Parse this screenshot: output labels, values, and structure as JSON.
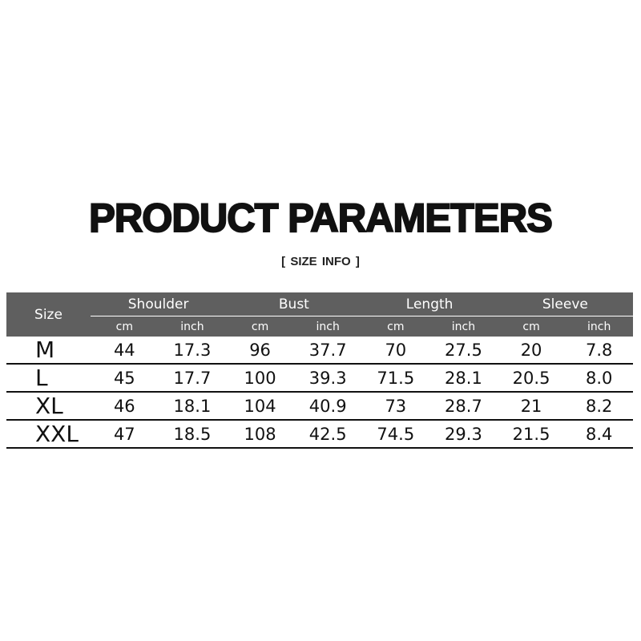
{
  "title": "PRODUCT PARAMETERS",
  "subtitle": "[ SIZE  INFO ]",
  "table": {
    "size_header": "Size",
    "groups": [
      "Shoulder",
      "Bust",
      "Length",
      "Sleeve"
    ],
    "units": [
      "cm",
      "inch",
      "cm",
      "inch",
      "cm",
      "inch",
      "cm",
      "inch"
    ],
    "rows": [
      {
        "size": "M",
        "values": [
          "44",
          "17.3",
          "96",
          "37.7",
          "70",
          "27.5",
          "20",
          "7.8"
        ]
      },
      {
        "size": "L",
        "values": [
          "45",
          "17.7",
          "100",
          "39.3",
          "71.5",
          "28.1",
          "20.5",
          "8.0"
        ]
      },
      {
        "size": "XL",
        "values": [
          "46",
          "18.1",
          "104",
          "40.9",
          "73",
          "28.7",
          "21",
          "8.2"
        ]
      },
      {
        "size": "XXL",
        "values": [
          "47",
          "18.5",
          "108",
          "42.5",
          "74.5",
          "29.3",
          "21.5",
          "8.4"
        ]
      }
    ]
  },
  "colors": {
    "header_bg": "#5f5f5f",
    "header_text": "#ffffff",
    "text": "#111111"
  }
}
